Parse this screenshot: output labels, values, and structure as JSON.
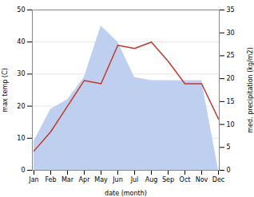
{
  "chart_data": {
    "type": "line",
    "categories": [
      "Jan",
      "Feb",
      "Mar",
      "Apr",
      "May",
      "Jun",
      "Jul",
      "Aug",
      "Sep",
      "Oct",
      "Nov",
      "Dec"
    ],
    "xlabel": "date (month)",
    "ylabel": "max temp (C)",
    "y2label": "med. precipitation (kg/m2)",
    "ylim": [
      0,
      50
    ],
    "yticks": [
      0,
      10,
      20,
      30,
      40,
      50
    ],
    "y2lim": [
      0,
      35
    ],
    "y2ticks": [
      0,
      5,
      10,
      15,
      20,
      25,
      30,
      35
    ],
    "grid": true,
    "series": [
      {
        "type": "area",
        "color": "#b8caee",
        "values": [
          9,
          19,
          22,
          29,
          45,
          40,
          29,
          28,
          28,
          28,
          28,
          0
        ]
      },
      {
        "type": "line",
        "color": "#c0392b",
        "values": [
          6,
          12,
          20,
          28,
          27,
          39,
          38,
          40,
          34,
          27,
          27,
          16
        ]
      }
    ]
  }
}
